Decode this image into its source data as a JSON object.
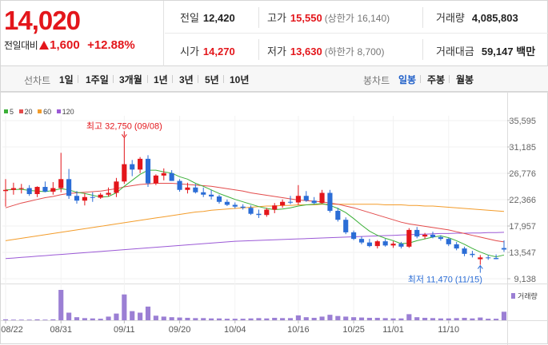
{
  "quote": {
    "price": "14,020",
    "change_label": "전일대비",
    "change_amount": "1,600",
    "change_pct": "+12.88%",
    "prev_label": "전일",
    "prev_value": "12,420",
    "high_label": "고가",
    "high_value": "15,550",
    "upper_label": "(상한가",
    "upper_value": "16,140)",
    "volume_label": "거래량",
    "volume_value": "4,085,803",
    "open_label": "시가",
    "open_value": "14,270",
    "low_label": "저가",
    "low_value": "13,630",
    "lower_label": "(하한가",
    "lower_value": "8,700)",
    "amount_label": "거래대금",
    "amount_value": "59,147",
    "amount_unit": "백만"
  },
  "toolbar": {
    "line_label": "선차트",
    "periods": [
      "1일",
      "1주일",
      "3개월",
      "1년",
      "3년",
      "5년",
      "10년"
    ],
    "candle_label": "봉차트",
    "candles": [
      "일봉",
      "주봉",
      "월봉"
    ],
    "active_candle": "일봉"
  },
  "legend": [
    {
      "name": "5",
      "color": "#3cb039"
    },
    {
      "name": "20",
      "color": "#e34b4b"
    },
    {
      "name": "60",
      "color": "#f39c2a"
    },
    {
      "name": "120",
      "color": "#9b59d6"
    }
  ],
  "chart_data": {
    "type": "candlestick",
    "y_ticks": [
      "35,595",
      "31,185",
      "26,776",
      "22,366",
      "17,957",
      "13,547",
      "9,138"
    ],
    "x_ticks": [
      "08/22",
      "08/31",
      "09/11",
      "09/20",
      "10/04",
      "10/16",
      "10/25",
      "11/01",
      "11/10"
    ],
    "annotation_high": "최고 32,750 (09/08)",
    "annotation_low": "최저 11,470 (11/15)",
    "volume_label": "거래량",
    "ylim": [
      9138,
      35595
    ],
    "candles": [
      [
        23800,
        25800,
        21200,
        24000
      ],
      [
        24000,
        25200,
        23200,
        24300
      ],
      [
        24300,
        25000,
        23400,
        24300
      ],
      [
        24300,
        24800,
        23000,
        23300
      ],
      [
        23300,
        24600,
        22800,
        24500
      ],
      [
        24500,
        25400,
        23600,
        23700
      ],
      [
        23700,
        25300,
        23200,
        24300
      ],
      [
        24300,
        30200,
        23600,
        25800
      ],
      [
        25800,
        27500,
        22500,
        23000
      ],
      [
        23000,
        23800,
        21700,
        22200
      ],
      [
        22200,
        23400,
        21400,
        22800
      ],
      [
        22800,
        23600,
        22000,
        22700
      ],
      [
        22700,
        23500,
        22500,
        23200
      ],
      [
        23200,
        24400,
        22900,
        23500
      ],
      [
        23500,
        26000,
        22800,
        25400
      ],
      [
        25400,
        32750,
        25000,
        28300
      ],
      [
        28300,
        29000,
        26300,
        27400
      ],
      [
        27400,
        29500,
        26800,
        29200
      ],
      [
        29200,
        29800,
        24500,
        25100
      ],
      [
        25100,
        26600,
        24800,
        26400
      ],
      [
        26400,
        27600,
        25600,
        26800
      ],
      [
        26800,
        27300,
        25500,
        25500
      ],
      [
        25500,
        25800,
        23700,
        24000
      ],
      [
        24000,
        25200,
        23400,
        24400
      ],
      [
        24400,
        25000,
        23400,
        23600
      ],
      [
        23600,
        24400,
        22800,
        23200
      ],
      [
        23200,
        24000,
        22400,
        22900
      ],
      [
        22900,
        23200,
        21700,
        22000
      ],
      [
        22000,
        22400,
        21300,
        21500
      ],
      [
        21500,
        21900,
        20900,
        21200
      ],
      [
        21200,
        21600,
        20700,
        21000
      ],
      [
        21000,
        21400,
        19800,
        20000
      ],
      [
        20000,
        20700,
        19300,
        19800
      ],
      [
        19800,
        21000,
        19500,
        20700
      ],
      [
        20700,
        21800,
        20100,
        21400
      ],
      [
        21400,
        22400,
        21000,
        22000
      ],
      [
        22000,
        23000,
        21600,
        21900
      ],
      [
        21900,
        24800,
        21500,
        23000
      ],
      [
        23000,
        23800,
        22000,
        22200
      ],
      [
        22200,
        22800,
        21600,
        21800
      ],
      [
        21800,
        24000,
        21700,
        23500
      ],
      [
        23500,
        24000,
        20200,
        20500
      ],
      [
        20500,
        21000,
        18700,
        19000
      ],
      [
        19000,
        19400,
        16600,
        16900
      ],
      [
        16900,
        17200,
        15600,
        15800
      ],
      [
        15800,
        16200,
        14900,
        15200
      ],
      [
        15200,
        15800,
        14400,
        14600
      ],
      [
        14600,
        15600,
        14200,
        15400
      ],
      [
        15400,
        15800,
        14500,
        14700
      ],
      [
        14700,
        15400,
        14300,
        15000
      ],
      [
        15000,
        15300,
        14200,
        14500
      ],
      [
        14500,
        17600,
        14300,
        17300
      ],
      [
        17300,
        17800,
        15900,
        16200
      ],
      [
        16200,
        16800,
        15800,
        16500
      ],
      [
        16500,
        17000,
        15900,
        16100
      ],
      [
        16100,
        16400,
        15500,
        15800
      ],
      [
        15800,
        16000,
        14600,
        14900
      ],
      [
        14900,
        15300,
        13900,
        14200
      ],
      [
        14200,
        14500,
        12900,
        13300
      ],
      [
        13300,
        13800,
        12700,
        13100
      ],
      [
        12400,
        13100,
        11470,
        12700
      ],
      [
        12700,
        13100,
        12300,
        12600
      ],
      [
        12600,
        13200,
        12400,
        12420
      ],
      [
        14270,
        15550,
        13630,
        14020
      ]
    ],
    "volumes": [
      3,
      2,
      2,
      2,
      3,
      2,
      3,
      100,
      25,
      10,
      7,
      6,
      5,
      12,
      22,
      85,
      30,
      25,
      45,
      15,
      12,
      10,
      9,
      8,
      7,
      7,
      6,
      6,
      5,
      5,
      5,
      6,
      7,
      6,
      8,
      7,
      7,
      16,
      10,
      8,
      12,
      18,
      14,
      12,
      10,
      9,
      8,
      8,
      7,
      6,
      6,
      20,
      10,
      8,
      7,
      6,
      6,
      7,
      8,
      6,
      9,
      5,
      5,
      28
    ],
    "ma5": [
      24000,
      24050,
      24100,
      23900,
      23800,
      23700,
      23900,
      24200,
      24000,
      23600,
      23400,
      23100,
      22800,
      22900,
      23500,
      24600,
      25600,
      26600,
      27300,
      27300,
      27000,
      26800,
      26200,
      25800,
      25100,
      24600,
      24000,
      23400,
      22900,
      22400,
      22000,
      21600,
      21200,
      20900,
      20700,
      20800,
      21000,
      21300,
      21500,
      21600,
      21700,
      21400,
      20900,
      20200,
      19200,
      18100,
      17100,
      16400,
      15900,
      15500,
      15000,
      15100,
      15500,
      15800,
      16100,
      16300,
      16000,
      15500,
      14900,
      14200,
      13600,
      13100,
      12800,
      13100
    ],
    "ma20": [
      21000,
      21400,
      21800,
      22100,
      22400,
      22700,
      22900,
      23200,
      23400,
      23500,
      23600,
      23700,
      23800,
      24000,
      24200,
      24500,
      24700,
      24900,
      25000,
      25100,
      25100,
      25100,
      25000,
      24900,
      24800,
      24700,
      24600,
      24400,
      24200,
      24000,
      23800,
      23500,
      23300,
      23100,
      22900,
      22700,
      22500,
      22300,
      22200,
      22100,
      22000,
      21800,
      21600,
      21300,
      21000,
      20600,
      20200,
      19800,
      19400,
      19000,
      18600,
      18300,
      18100,
      17900,
      17700,
      17500,
      17300,
      17000,
      16700,
      16400,
      16100,
      15800,
      15500,
      15300
    ],
    "ma60": [
      15500,
      15700,
      15900,
      16100,
      16300,
      16500,
      16700,
      16900,
      17100,
      17300,
      17500,
      17700,
      17900,
      18100,
      18300,
      18500,
      18700,
      18900,
      19100,
      19300,
      19500,
      19700,
      19900,
      20100,
      20300,
      20400,
      20600,
      20700,
      20800,
      20900,
      21000,
      21100,
      21200,
      21300,
      21300,
      21400,
      21400,
      21500,
      21500,
      21500,
      21600,
      21600,
      21600,
      21600,
      21600,
      21600,
      21600,
      21600,
      21500,
      21500,
      21500,
      21400,
      21400,
      21300,
      21300,
      21200,
      21100,
      21000,
      20900,
      20800,
      20700,
      20600,
      20500,
      20400
    ],
    "ma120": [
      12500,
      12600,
      12700,
      12800,
      12900,
      13000,
      13100,
      13200,
      13300,
      13400,
      13500,
      13600,
      13700,
      13800,
      13900,
      14000,
      14100,
      14200,
      14300,
      14400,
      14500,
      14600,
      14700,
      14800,
      14900,
      15000,
      15100,
      15200,
      15300,
      15400,
      15450,
      15500,
      15550,
      15600,
      15650,
      15700,
      15750,
      15800,
      15850,
      15900,
      15950,
      16000,
      16050,
      16100,
      16150,
      16200,
      16250,
      16300,
      16350,
      16400,
      16450,
      16500,
      16550,
      16600,
      16650,
      16700,
      16700,
      16750,
      16750,
      16800,
      16800,
      16850,
      16850,
      16900
    ]
  }
}
